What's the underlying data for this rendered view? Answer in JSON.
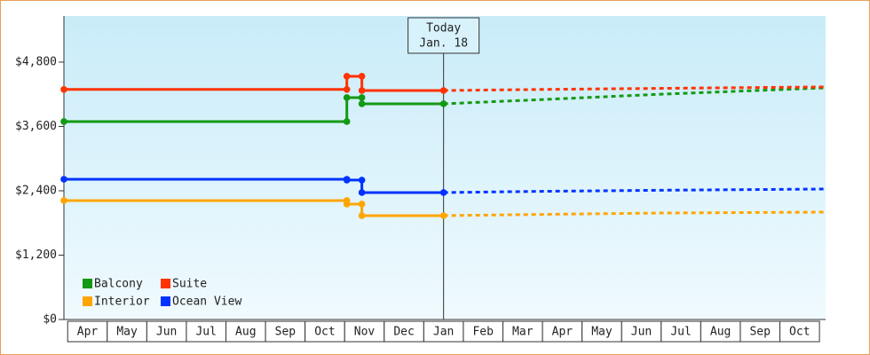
{
  "chart_data": {
    "type": "line",
    "categories": [
      "Apr",
      "May",
      "Jun",
      "Jul",
      "Aug",
      "Sep",
      "Oct",
      "Nov",
      "Dec",
      "Jan",
      "Feb",
      "Mar",
      "Apr",
      "May",
      "Jun",
      "Jul",
      "Aug",
      "Sep",
      "Oct"
    ],
    "xlim": [
      -0.05,
      19.2
    ],
    "ylim": [
      0,
      5660
    ],
    "yticks": [
      {
        "value": 0,
        "label": "$0"
      },
      {
        "value": 1200,
        "label": "$1,200"
      },
      {
        "value": 2400,
        "label": "$2,400"
      },
      {
        "value": 3600,
        "label": "$3,600"
      },
      {
        "value": 4800,
        "label": "$4,800"
      }
    ],
    "grid": false,
    "annotation": {
      "x": 9.545,
      "lines": [
        "Today",
        "Jan. 18"
      ]
    },
    "series": [
      {
        "name": "Balcony",
        "color": "#139913",
        "x": [
          -0.05,
          7.1,
          7.1,
          7.48,
          7.48,
          9.545
        ],
        "values": [
          3691,
          3691,
          4138,
          4138,
          4022,
          4022
        ],
        "forecast_x": [
          9.545,
          12,
          15,
          19.2
        ],
        "forecast_values": [
          4022,
          4100,
          4200,
          4320
        ]
      },
      {
        "name": "Suite",
        "color": "#ff3300",
        "x": [
          -0.05,
          7.1,
          7.1,
          7.48,
          7.48,
          9.545
        ],
        "values": [
          4290,
          4290,
          4535,
          4535,
          4270,
          4270
        ],
        "forecast_x": [
          9.545,
          12,
          15,
          19.2
        ],
        "forecast_values": [
          4270,
          4290,
          4310,
          4337
        ]
      },
      {
        "name": "Interior",
        "color": "#ffa500",
        "x": [
          -0.05,
          7.1,
          7.1,
          7.48,
          7.48,
          9.545
        ],
        "values": [
          2218,
          2218,
          2152,
          2152,
          1937,
          1937
        ],
        "forecast_x": [
          9.545,
          12,
          15,
          19.2
        ],
        "forecast_values": [
          1937,
          1960,
          1985,
          2003
        ]
      },
      {
        "name": "Ocean View",
        "color": "#0033ff",
        "x": [
          -0.05,
          7.1,
          7.1,
          7.48,
          7.48,
          9.545
        ],
        "values": [
          2615,
          2615,
          2600,
          2600,
          2367,
          2367
        ],
        "forecast_x": [
          9.545,
          12,
          15,
          19.2
        ],
        "forecast_values": [
          2367,
          2390,
          2410,
          2433
        ]
      }
    ]
  }
}
